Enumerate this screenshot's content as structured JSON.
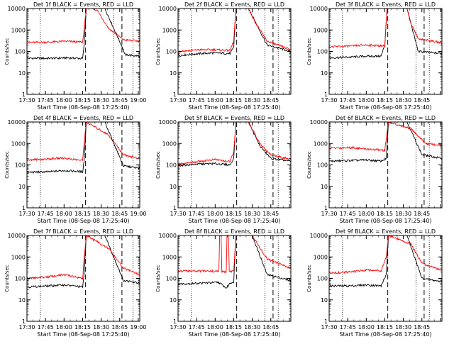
{
  "figure": {
    "type": "multi-panel log-scale time series",
    "ylabel": "Counts/sec",
    "xlabel": "Start Time (08-Sep-08 17:25:40)",
    "x_ticks": [
      "17:30",
      "17:45",
      "18:00",
      "18:15",
      "18:30",
      "18:45",
      "19:00"
    ],
    "y_ticks": [
      "1",
      "10",
      "100",
      "1000",
      "10000"
    ],
    "colors": {
      "events": "#000000",
      "lld": "#ff0000"
    }
  },
  "chart_data": [
    {
      "type": "line",
      "title": "Det 1f BLACK = Events, RED = LLD",
      "xlabel": "Start Time (08-Sep-08 17:25:40)",
      "ylabel": "Counts/sec",
      "yscale": "log",
      "ylim": [
        1,
        10000
      ],
      "xlim_minutes": [
        17.5,
        19.02
      ],
      "series": [
        {
          "name": "Events",
          "color": "black",
          "points": [
            [
              17.5,
              48
            ],
            [
              17.8,
              48
            ],
            [
              18.05,
              50
            ],
            [
              18.25,
              47
            ],
            [
              18.27,
              190
            ],
            [
              18.3,
              10000
            ],
            [
              18.55,
              10000
            ],
            [
              18.8,
              120
            ],
            [
              18.82,
              70
            ],
            [
              19.02,
              60
            ]
          ]
        },
        {
          "name": "LLD",
          "color": "red",
          "points": [
            [
              17.5,
              260
            ],
            [
              17.8,
              270
            ],
            [
              18.0,
              300
            ],
            [
              18.25,
              270
            ],
            [
              18.27,
              1000
            ],
            [
              18.3,
              10000
            ],
            [
              18.38,
              10000
            ],
            [
              18.45,
              8000
            ],
            [
              18.6,
              1200
            ],
            [
              18.8,
              350
            ],
            [
              19.02,
              300
            ]
          ]
        }
      ],
      "vlines_dotted": [
        17.68,
        18.67,
        18.93
      ],
      "vlines_dashed": [
        18.29,
        18.78
      ]
    },
    {
      "type": "line",
      "title": "Det 2f BLACK = Events, RED = LLD",
      "xlabel": "Start Time (08-Sep-08 17:25:40)",
      "ylabel": "Counts/sec",
      "yscale": "log",
      "ylim": [
        1,
        10000
      ],
      "xlim_minutes": [
        17.5,
        19.02
      ],
      "series": [
        {
          "name": "Events",
          "color": "black",
          "points": [
            [
              17.5,
              65
            ],
            [
              17.8,
              80
            ],
            [
              18.0,
              85
            ],
            [
              18.2,
              80
            ],
            [
              18.25,
              150
            ],
            [
              18.28,
              10000
            ],
            [
              18.45,
              10000
            ],
            [
              18.7,
              200
            ],
            [
              19.02,
              100
            ]
          ]
        },
        {
          "name": "LLD",
          "color": "red",
          "points": [
            [
              17.5,
              100
            ],
            [
              17.8,
              120
            ],
            [
              18.0,
              120
            ],
            [
              18.2,
              110
            ],
            [
              18.25,
              300
            ],
            [
              18.28,
              10000
            ],
            [
              18.45,
              10000
            ],
            [
              18.55,
              2000
            ],
            [
              18.7,
              300
            ],
            [
              19.02,
              120
            ]
          ]
        }
      ],
      "vlines_dotted": [
        17.68,
        18.67,
        18.85
      ],
      "vlines_dashed": [
        18.29,
        18.78
      ]
    },
    {
      "type": "line",
      "title": "Det 3f BLACK = Events, RED = LLD",
      "xlabel": "Start Time (08-Sep-08 17:25:40)",
      "ylabel": "Counts/sec",
      "yscale": "log",
      "ylim": [
        1,
        10000
      ],
      "xlim_minutes": [
        17.5,
        19.02
      ],
      "series": [
        {
          "name": "Events",
          "color": "black",
          "points": [
            [
              17.5,
              50
            ],
            [
              17.8,
              55
            ],
            [
              18.0,
              60
            ],
            [
              18.2,
              60
            ],
            [
              18.25,
              200
            ],
            [
              18.28,
              10000
            ],
            [
              18.55,
              10000
            ],
            [
              18.7,
              100
            ],
            [
              19.02,
              80
            ]
          ]
        },
        {
          "name": "LLD",
          "color": "red",
          "points": [
            [
              17.5,
              160
            ],
            [
              17.8,
              180
            ],
            [
              18.0,
              200
            ],
            [
              18.25,
              180
            ],
            [
              18.28,
              10000
            ],
            [
              18.55,
              10000
            ],
            [
              18.6,
              2000
            ],
            [
              18.7,
              400
            ],
            [
              19.02,
              250
            ]
          ]
        }
      ],
      "vlines_dotted": [
        17.68,
        18.67,
        18.85
      ],
      "vlines_dashed": [
        18.29,
        18.78
      ]
    },
    {
      "type": "line",
      "title": "Det 4f BLACK = Events, RED = LLD",
      "xlabel": "Start Time (08-Sep-08 17:25:40)",
      "ylabel": "Counts/sec",
      "yscale": "log",
      "ylim": [
        1,
        10000
      ],
      "xlim_minutes": [
        17.5,
        19.02
      ],
      "series": [
        {
          "name": "Events",
          "color": "black",
          "points": [
            [
              17.5,
              45
            ],
            [
              17.8,
              48
            ],
            [
              18.0,
              55
            ],
            [
              18.25,
              48
            ],
            [
              18.27,
              150
            ],
            [
              18.3,
              10000
            ],
            [
              18.55,
              10000
            ],
            [
              18.8,
              90
            ],
            [
              19.02,
              70
            ]
          ]
        },
        {
          "name": "LLD",
          "color": "red",
          "points": [
            [
              17.5,
              170
            ],
            [
              17.8,
              190
            ],
            [
              18.0,
              210
            ],
            [
              18.25,
              160
            ],
            [
              18.27,
              1000
            ],
            [
              18.3,
              10000
            ],
            [
              18.6,
              2500
            ],
            [
              18.8,
              300
            ],
            [
              19.02,
              200
            ]
          ]
        }
      ],
      "vlines_dotted": [
        17.68,
        18.67,
        18.93
      ],
      "vlines_dashed": [
        18.29,
        18.78
      ]
    },
    {
      "type": "line",
      "title": "Det 5f BLACK = Events, RED = LLD",
      "xlabel": "Start Time (08-Sep-08 17:25:40)",
      "ylabel": "Counts/sec",
      "yscale": "log",
      "ylim": [
        1,
        10000
      ],
      "xlim_minutes": [
        17.5,
        19.02
      ],
      "series": [
        {
          "name": "Events",
          "color": "black",
          "points": [
            [
              17.5,
              95
            ],
            [
              17.8,
              110
            ],
            [
              18.0,
              115
            ],
            [
              18.2,
              100
            ],
            [
              18.25,
              200
            ],
            [
              18.28,
              10000
            ],
            [
              18.45,
              10000
            ],
            [
              18.6,
              800
            ],
            [
              18.75,
              200
            ],
            [
              19.02,
              150
            ]
          ]
        },
        {
          "name": "LLD",
          "color": "red",
          "points": [
            [
              17.5,
              110
            ],
            [
              17.8,
              150
            ],
            [
              18.0,
              180
            ],
            [
              18.2,
              140
            ],
            [
              18.25,
              400
            ],
            [
              18.28,
              10000
            ],
            [
              18.45,
              10000
            ],
            [
              18.6,
              1000
            ],
            [
              18.75,
              300
            ],
            [
              19.02,
              180
            ]
          ]
        }
      ],
      "vlines_dotted": [
        17.68,
        18.67,
        18.85
      ],
      "vlines_dashed": [
        18.29,
        18.78
      ]
    },
    {
      "type": "line",
      "title": "Det 6f BLACK = Events, RED = LLD",
      "xlabel": "Start Time (08-Sep-08 17:25:40)",
      "ylabel": "Counts/sec",
      "yscale": "log",
      "ylim": [
        1,
        10000
      ],
      "xlim_minutes": [
        17.5,
        19.02
      ],
      "series": [
        {
          "name": "Events",
          "color": "black",
          "points": [
            [
              17.5,
              150
            ],
            [
              17.8,
              160
            ],
            [
              18.0,
              170
            ],
            [
              18.2,
              150
            ],
            [
              18.27,
              200
            ],
            [
              18.3,
              10000
            ],
            [
              18.55,
              10000
            ],
            [
              18.75,
              300
            ],
            [
              19.02,
              200
            ]
          ]
        },
        {
          "name": "LLD",
          "color": "red",
          "points": [
            [
              17.5,
              600
            ],
            [
              17.8,
              650
            ],
            [
              18.0,
              550
            ],
            [
              18.25,
              480
            ],
            [
              18.3,
              10000
            ],
            [
              18.6,
              5000
            ],
            [
              18.8,
              1000
            ],
            [
              19.02,
              800
            ]
          ]
        }
      ],
      "vlines_dotted": [
        17.68,
        18.67,
        18.85
      ],
      "vlines_dashed": [
        18.29,
        18.78
      ]
    },
    {
      "type": "line",
      "title": "Det 7f BLACK = Events, RED = LLD",
      "xlabel": "Start Time (08-Sep-08 17:25:40)",
      "ylabel": "Counts/sec",
      "yscale": "log",
      "ylim": [
        1,
        10000
      ],
      "xlim_minutes": [
        17.5,
        19.02
      ],
      "series": [
        {
          "name": "Events",
          "color": "black",
          "points": [
            [
              17.5,
              40
            ],
            [
              17.8,
              45
            ],
            [
              18.0,
              50
            ],
            [
              18.25,
              40
            ],
            [
              18.27,
              150
            ],
            [
              18.3,
              10000
            ],
            [
              18.55,
              10000
            ],
            [
              18.8,
              80
            ],
            [
              19.02,
              60
            ]
          ]
        },
        {
          "name": "LLD",
          "color": "red",
          "points": [
            [
              17.5,
              100
            ],
            [
              17.8,
              120
            ],
            [
              18.0,
              150
            ],
            [
              18.25,
              100
            ],
            [
              18.27,
              800
            ],
            [
              18.3,
              10000
            ],
            [
              18.6,
              2500
            ],
            [
              18.8,
              300
            ],
            [
              19.02,
              150
            ]
          ]
        }
      ],
      "vlines_dotted": [
        17.68,
        18.67,
        18.93
      ],
      "vlines_dashed": [
        18.29,
        18.78
      ]
    },
    {
      "type": "line",
      "title": "Det 8f BLACK = Events, RED = LLD",
      "xlabel": "Start Time (08-Sep-08 17:25:40)",
      "ylabel": "Counts/sec",
      "yscale": "log",
      "ylim": [
        1,
        10000
      ],
      "xlim_minutes": [
        17.5,
        19.02
      ],
      "series": [
        {
          "name": "Events",
          "color": "black",
          "points": [
            [
              17.5,
              55
            ],
            [
              17.8,
              60
            ],
            [
              18.05,
              65
            ],
            [
              18.15,
              35
            ],
            [
              18.2,
              60
            ],
            [
              18.25,
              70
            ],
            [
              18.28,
              10000
            ],
            [
              18.5,
              10000
            ],
            [
              18.7,
              150
            ],
            [
              19.02,
              80
            ]
          ]
        },
        {
          "name": "LLD",
          "color": "red",
          "points": [
            [
              17.5,
              220
            ],
            [
              17.9,
              220
            ],
            [
              18.05,
              210
            ],
            [
              18.06,
              10000
            ],
            [
              18.08,
              10000
            ],
            [
              18.09,
              200
            ],
            [
              18.15,
              200
            ],
            [
              18.16,
              10000
            ],
            [
              18.18,
              10000
            ],
            [
              18.19,
              200
            ],
            [
              18.25,
              230
            ],
            [
              18.28,
              10000
            ],
            [
              18.5,
              10000
            ],
            [
              18.7,
              800
            ],
            [
              19.02,
              300
            ]
          ]
        }
      ],
      "vlines_dotted": [
        17.68,
        18.67,
        18.85
      ],
      "vlines_dashed": [
        18.29,
        18.78
      ]
    },
    {
      "type": "line",
      "title": "Det 9f BLACK = Events, RED = LLD",
      "xlabel": "Start Time (08-Sep-08 17:25:40)",
      "ylabel": "Counts/sec",
      "yscale": "log",
      "ylim": [
        1,
        10000
      ],
      "xlim_minutes": [
        17.5,
        19.02
      ],
      "series": [
        {
          "name": "Events",
          "color": "black",
          "points": [
            [
              17.5,
              45
            ],
            [
              17.8,
              45
            ],
            [
              18.0,
              50
            ],
            [
              18.2,
              45
            ],
            [
              18.27,
              150
            ],
            [
              18.3,
              10000
            ],
            [
              18.55,
              10000
            ],
            [
              18.75,
              100
            ],
            [
              19.02,
              70
            ]
          ]
        },
        {
          "name": "LLD",
          "color": "red",
          "points": [
            [
              17.5,
              180
            ],
            [
              17.8,
              200
            ],
            [
              18.0,
              250
            ],
            [
              18.2,
              230
            ],
            [
              18.27,
              1000
            ],
            [
              18.3,
              10000
            ],
            [
              18.6,
              4000
            ],
            [
              18.75,
              500
            ],
            [
              19.02,
              250
            ]
          ]
        }
      ],
      "vlines_dotted": [
        17.68,
        18.67,
        18.85
      ],
      "vlines_dashed": [
        18.29,
        18.78
      ]
    }
  ]
}
